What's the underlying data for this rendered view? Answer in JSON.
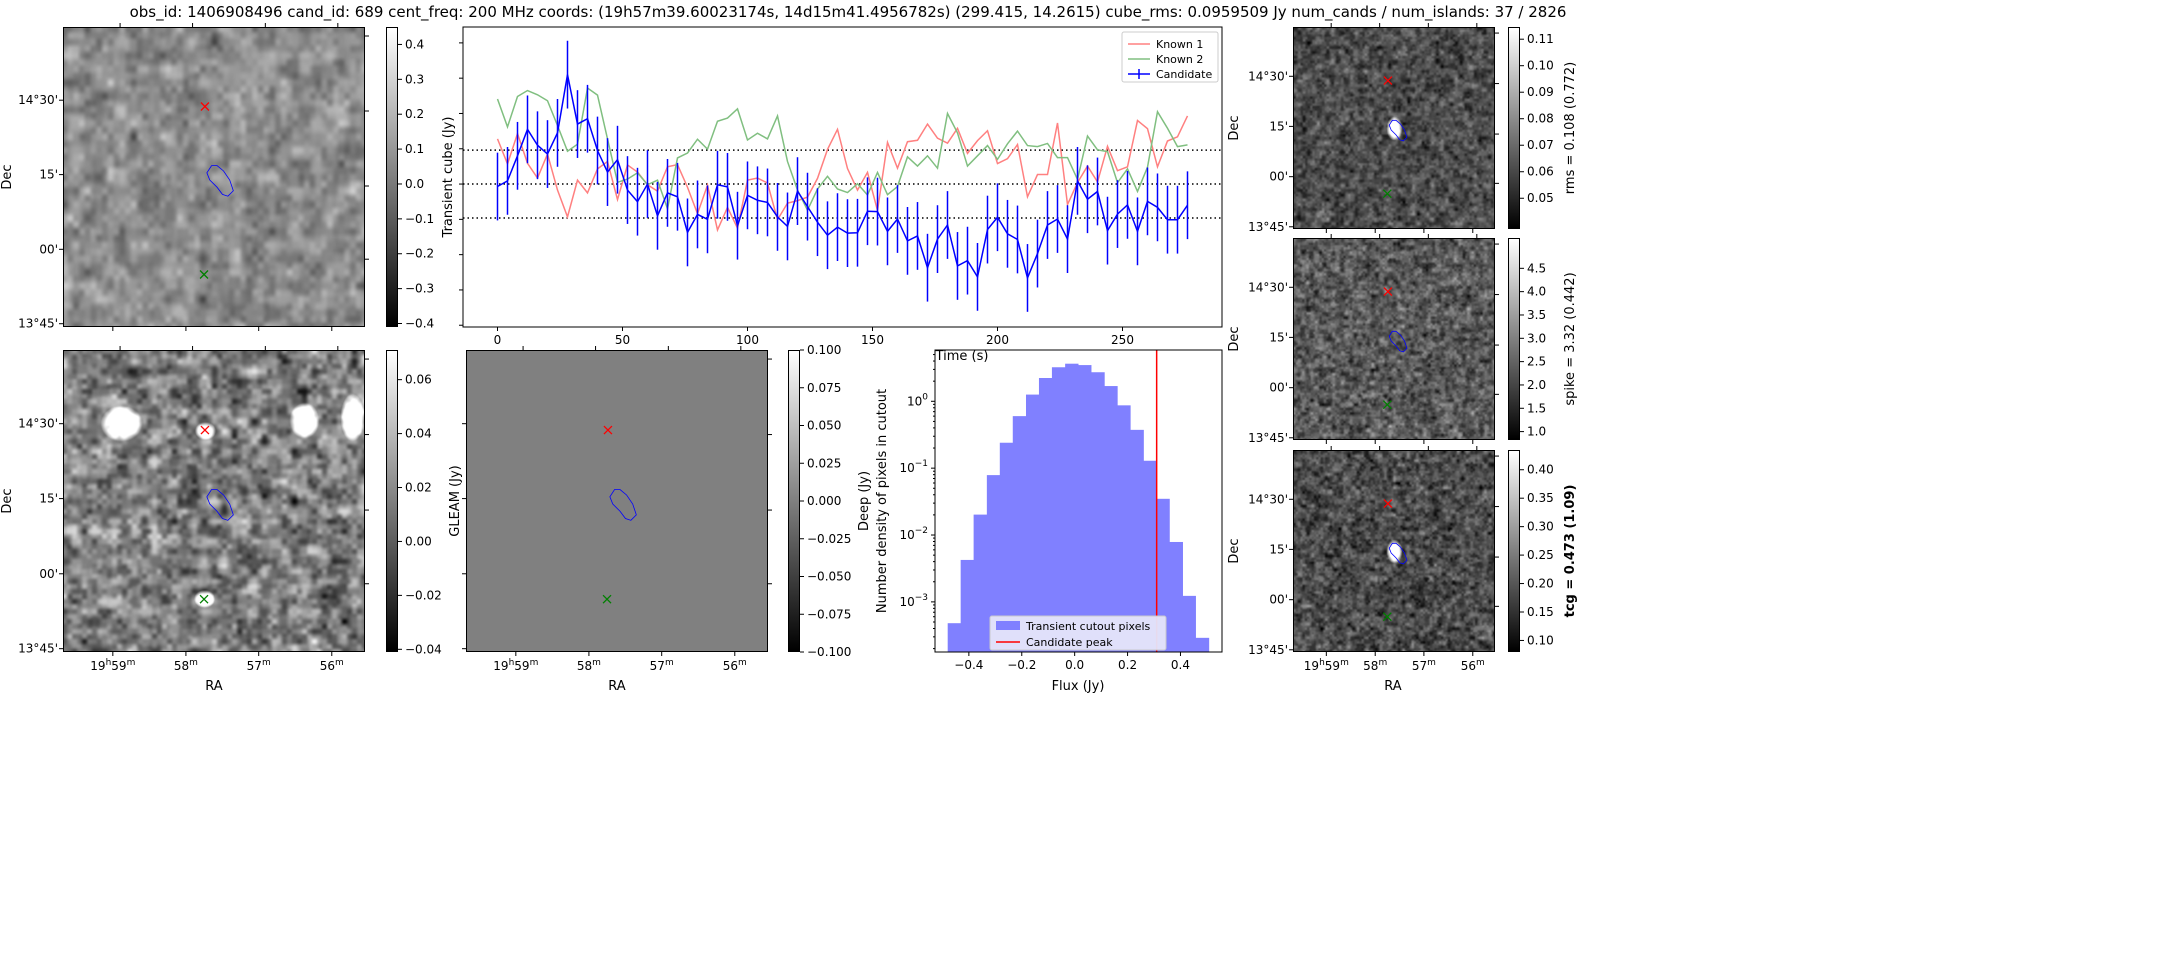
{
  "title": "obs_id: 1406908496 cand_id: 689 cent_freq: 200 MHz coords: (19h57m39.60023174s, 14d15m41.4956782s) (299.415, 14.2615) cube_rms: 0.0959509 Jy num_cands / num_islands: 37 / 2826",
  "axes": {
    "dec_label": "Dec",
    "ra_label": "RA",
    "dec_ticks": [
      "14°30'",
      "15'",
      "00'",
      "13°45'"
    ],
    "ra_ticks": [
      "19h59m",
      "58m",
      "57m",
      "56m"
    ]
  },
  "panels": {
    "transient": {
      "colorbar_label": "Transient cube (Jy)",
      "range": [
        -0.41,
        0.45
      ],
      "tick_values": [
        0.4,
        0.3,
        0.2,
        0.1,
        0.0,
        -0.1,
        -0.2,
        -0.3,
        -0.4
      ],
      "ticks": [
        "0.4",
        "0.3",
        "0.2",
        "0.1",
        "0.0",
        "−0.1",
        "−0.2",
        "−0.3",
        "−0.4"
      ]
    },
    "gleam_source": {
      "colorbar_label": "GLEAM (Jy)",
      "range": [
        -0.041,
        0.071
      ],
      "tick_values": [
        0.06,
        0.04,
        0.02,
        0.0,
        -0.02,
        -0.04
      ],
      "ticks": [
        "0.06",
        "0.04",
        "0.02",
        "0.00",
        "−0.02",
        "−0.04"
      ]
    },
    "deep": {
      "colorbar_label": "Deep (Jy)",
      "range": [
        -0.1,
        0.1
      ],
      "tick_values": [
        0.1,
        0.075,
        0.05,
        0.025,
        0.0,
        -0.025,
        -0.05,
        -0.075,
        -0.1
      ],
      "ticks": [
        "0.100",
        "0.075",
        "0.050",
        "0.025",
        "0.000",
        "−0.025",
        "−0.050",
        "−0.075",
        "−0.100"
      ]
    },
    "rms": {
      "colorbar_label": "rms = 0.108 (0.772)",
      "range": [
        0.0384,
        0.1146
      ],
      "tick_values": [
        0.11,
        0.1,
        0.09,
        0.08,
        0.07,
        0.06,
        0.05
      ],
      "ticks": [
        "0.11",
        "0.10",
        "0.09",
        "0.08",
        "0.07",
        "0.06",
        "0.05"
      ]
    },
    "spike": {
      "colorbar_label": "spike = 3.32 (0.442)",
      "range": [
        0.82,
        5.15
      ],
      "tick_values": [
        4.5,
        4.0,
        3.5,
        3.0,
        2.5,
        2.0,
        1.5,
        1.0
      ],
      "ticks": [
        "4.5",
        "4.0",
        "3.5",
        "3.0",
        "2.5",
        "2.0",
        "1.5",
        "1.0"
      ]
    },
    "tcg": {
      "colorbar_label": "tcg = 0.473 (1.09)",
      "range": [
        0.0797,
        0.4347
      ],
      "tick_values": [
        0.4,
        0.35,
        0.3,
        0.25,
        0.2,
        0.15,
        0.1
      ],
      "ticks": [
        "0.40",
        "0.35",
        "0.30",
        "0.25",
        "0.20",
        "0.15",
        "0.10"
      ]
    }
  },
  "colors": {
    "known1": "#ff8080",
    "known2": "#80bf80",
    "candidate": "#0000ff",
    "hist": "#8080ff",
    "peak": "#ff0000"
  },
  "chart_data": [
    {
      "type": "line",
      "title": "",
      "xlabel": "Time (s)",
      "ylabel": "",
      "xlim": [
        -13.8,
        289.8
      ],
      "ylim": [
        -0.405,
        0.445
      ],
      "x_ticks": [
        0,
        50,
        100,
        150,
        200,
        250
      ],
      "x_tick_labels": [
        "0",
        "50",
        "100",
        "150",
        "200",
        "250"
      ],
      "y_ticks": [
        -0.4,
        -0.3,
        -0.2,
        -0.1,
        0.0,
        0.1,
        0.2,
        0.3,
        0.4
      ],
      "hlines": [
        0.096,
        0.0,
        -0.096
      ],
      "legend": "top-right",
      "x": [
        0,
        4,
        8,
        12,
        16,
        20,
        24,
        28,
        32,
        36,
        40,
        44,
        48,
        52,
        56,
        60,
        64,
        68,
        72,
        76,
        80,
        84,
        88,
        92,
        96,
        100,
        104,
        108,
        112,
        116,
        120,
        124,
        128,
        132,
        136,
        140,
        144,
        148,
        152,
        156,
        160,
        164,
        168,
        172,
        176,
        180,
        184,
        188,
        192,
        196,
        200,
        204,
        208,
        212,
        216,
        220,
        224,
        228,
        232,
        236,
        240,
        244,
        248,
        252,
        256,
        260,
        264,
        268,
        272,
        276
      ],
      "series": [
        {
          "name": "Known 1",
          "values": [
            0.128,
            0.057,
            0.143,
            0.059,
            0.017,
            0.085,
            -0.017,
            -0.093,
            0.011,
            -0.025,
            0.043,
            0.064,
            -0.044,
            0.054,
            0.034,
            -0.002,
            -0.02,
            0.049,
            0.055,
            -0.009,
            -0.084,
            -0.003,
            -0.13,
            -0.066,
            -0.125,
            0.011,
            0.017,
            0.003,
            -0.101,
            -0.054,
            -0.047,
            -0.037,
            0.016,
            0.098,
            0.155,
            0.044,
            -0.017,
            0.033,
            -0.075,
            0.118,
            0.045,
            0.12,
            0.124,
            0.17,
            0.13,
            0.116,
            0.158,
            0.087,
            0.123,
            0.151,
            0.058,
            0.072,
            0.112,
            -0.036,
            0.027,
            0.027,
            0.173,
            -0.058,
            0.004,
            0.051,
            0.006,
            0.107,
            0.038,
            0.049,
            0.18,
            0.157,
            0.049,
            0.122,
            0.134,
            0.193
          ]
        },
        {
          "name": "Known 2",
          "values": [
            0.241,
            0.162,
            0.248,
            0.265,
            0.253,
            0.236,
            0.166,
            0.093,
            0.113,
            0.272,
            0.252,
            0.128,
            0.005,
            0.014,
            0.032,
            -0.002,
            0.011,
            -0.07,
            0.074,
            0.088,
            0.127,
            0.099,
            0.178,
            0.187,
            0.213,
            0.125,
            0.144,
            0.128,
            0.193,
            0.064,
            -0.017,
            -0.074,
            -0.014,
            0.022,
            -0.014,
            -0.024,
            0.001,
            -0.031,
            0.033,
            -0.03,
            -0.007,
            0.077,
            0.051,
            0.08,
            0.045,
            0.2,
            0.145,
            0.051,
            0.08,
            0.109,
            0.07,
            0.114,
            0.15,
            0.109,
            0.106,
            0.115,
            0.075,
            0.075,
            0.013,
            0.136,
            0.097,
            0.092,
            0.004,
            0.043,
            -0.021,
            0.048,
            0.205,
            0.158,
            0.106,
            0.111
          ]
        },
        {
          "name": "Candidate",
          "yerr": 0.096,
          "values": [
            -0.007,
            0.009,
            0.08,
            0.155,
            0.11,
            0.085,
            0.145,
            0.31,
            0.17,
            0.185,
            0.095,
            0.034,
            0.069,
            -0.017,
            -0.05,
            0.0,
            -0.09,
            -0.025,
            -0.036,
            -0.137,
            -0.086,
            -0.1,
            -0.002,
            -0.008,
            -0.118,
            -0.032,
            -0.046,
            -0.052,
            -0.093,
            -0.12,
            -0.02,
            -0.064,
            -0.108,
            -0.145,
            -0.122,
            -0.139,
            -0.138,
            -0.077,
            -0.078,
            -0.134,
            -0.099,
            -0.161,
            -0.147,
            -0.237,
            -0.156,
            -0.116,
            -0.232,
            -0.217,
            -0.263,
            -0.129,
            -0.094,
            -0.141,
            -0.157,
            -0.266,
            -0.197,
            -0.116,
            -0.099,
            -0.156,
            0.009,
            -0.043,
            -0.021,
            -0.132,
            -0.085,
            -0.059,
            -0.134,
            -0.049,
            -0.066,
            -0.101,
            -0.101,
            -0.06
          ]
        }
      ]
    },
    {
      "type": "bar",
      "title": "",
      "xlabel": "Flux (Jy)",
      "ylabel": "Number density of pixels in cutout",
      "yscale": "log",
      "xlim": [
        -0.528,
        0.557
      ],
      "ylim": [
        0.000178,
        5.85
      ],
      "x_ticks": [
        -0.4,
        -0.2,
        0.0,
        0.2,
        0.4
      ],
      "x_tick_labels": [
        "−0.4",
        "−0.2",
        "0.0",
        "0.2",
        "0.4"
      ],
      "y_ticks": [
        1,
        0.1,
        0.01,
        0.001
      ],
      "y_tick_labels": [
        [
          "10",
          "0"
        ],
        [
          "10",
          "−1"
        ],
        [
          "10",
          "−2"
        ],
        [
          "10",
          "−3"
        ]
      ],
      "legend": "bottom-center",
      "bin_edges": [
        -0.48,
        -0.431,
        -0.382,
        -0.332,
        -0.283,
        -0.234,
        -0.184,
        -0.135,
        -0.086,
        -0.036,
        0.013,
        0.062,
        0.112,
        0.161,
        0.21,
        0.26,
        0.309,
        0.358,
        0.408,
        0.457,
        0.507
      ],
      "series": [
        {
          "name": "Transient cutout pixels",
          "values": [
            0.00048,
            0.00424,
            0.0202,
            0.0787,
            0.24,
            0.6,
            1.26,
            2.23,
            3.23,
            3.65,
            3.48,
            2.72,
            1.69,
            0.87,
            0.374,
            0.129,
            0.0348,
            0.00787,
            0.00123,
            0.00029
          ]
        },
        {
          "name": "Candidate peak",
          "vline": 0.31
        }
      ]
    }
  ]
}
